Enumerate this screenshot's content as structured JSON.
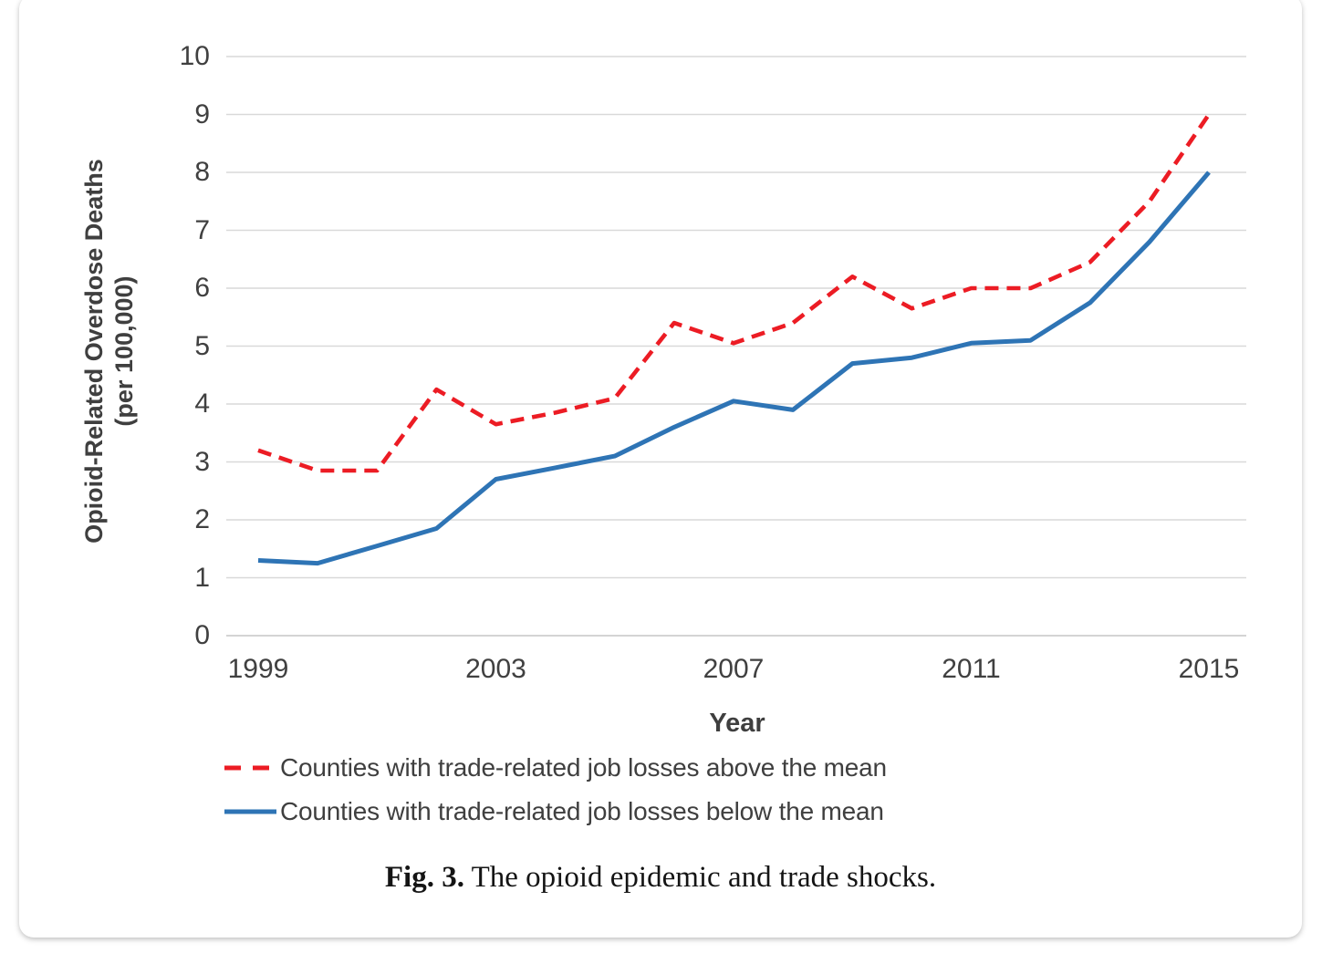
{
  "figure": {
    "caption_label": "Fig. 3.",
    "caption_text": " The opioid epidemic and trade shocks."
  },
  "chart_data": {
    "type": "line",
    "title": "",
    "xlabel": "Year",
    "ylabel": "Opioid-Related Overdose Deaths (per 100,000)",
    "ylabel_line1": "Opioid-Related Overdose Deaths",
    "ylabel_line2": "(per 100,000)",
    "x": [
      1999,
      2000,
      2001,
      2002,
      2003,
      2004,
      2005,
      2006,
      2007,
      2008,
      2009,
      2010,
      2011,
      2012,
      2013,
      2014,
      2015
    ],
    "xticks": [
      1999,
      2003,
      2007,
      2011,
      2015
    ],
    "ylim": [
      0,
      10
    ],
    "ytick_step": 1,
    "grid": "horizontal",
    "legend_position": "bottom-left",
    "series": [
      {
        "name": "Counties with trade-related job losses above the mean",
        "color": "#ec1c24",
        "style": "dashed",
        "values": [
          3.2,
          2.85,
          2.85,
          4.25,
          3.65,
          3.85,
          4.1,
          5.4,
          5.05,
          5.4,
          6.2,
          5.65,
          6.0,
          6.0,
          6.45,
          7.5,
          9.0
        ]
      },
      {
        "name": "Counties with trade-related job losses below the mean",
        "color": "#2e74b5",
        "style": "solid",
        "values": [
          1.3,
          1.25,
          1.55,
          1.85,
          2.7,
          2.9,
          3.1,
          3.6,
          4.05,
          3.9,
          4.7,
          4.8,
          5.05,
          5.1,
          5.75,
          6.8,
          8.0
        ]
      }
    ],
    "colors": {
      "gridline": "#d9d9d9",
      "axis_line": "#c6c6c6",
      "tick_text": "#404040"
    }
  }
}
